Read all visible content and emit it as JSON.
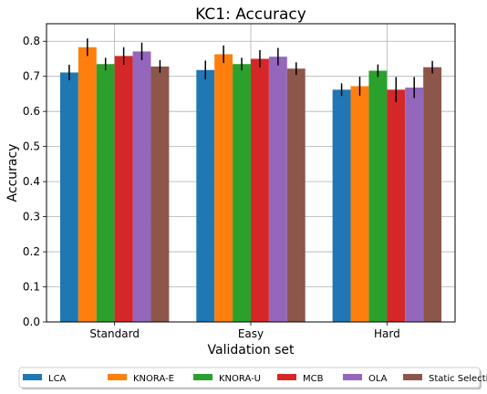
{
  "chart_data": {
    "type": "bar",
    "title": "KC1: Accuracy",
    "xlabel": "Validation set",
    "ylabel": "Accuracy",
    "categories": [
      "Standard",
      "Easy",
      "Hard"
    ],
    "ylim": [
      0,
      0.85
    ],
    "yticks": [
      0.0,
      0.1,
      0.2,
      0.3,
      0.4,
      0.5,
      0.6,
      0.7,
      0.8
    ],
    "grid": true,
    "legend_position": "bottom",
    "error_bars": true,
    "series": [
      {
        "name": "LCA",
        "color": "#1f77b4",
        "values": [
          0.711,
          0.718,
          0.662
        ],
        "errors": [
          0.022,
          0.027,
          0.018
        ]
      },
      {
        "name": "KNORA-E",
        "color": "#ff7f0e",
        "values": [
          0.783,
          0.763,
          0.672
        ],
        "errors": [
          0.025,
          0.025,
          0.027
        ]
      },
      {
        "name": "KNORA-U",
        "color": "#2ca02c",
        "values": [
          0.735,
          0.735,
          0.716
        ],
        "errors": [
          0.018,
          0.018,
          0.018
        ]
      },
      {
        "name": "MCB",
        "color": "#d62728",
        "values": [
          0.758,
          0.75,
          0.662
        ],
        "errors": [
          0.025,
          0.025,
          0.036
        ]
      },
      {
        "name": "OLA",
        "color": "#9467bd",
        "values": [
          0.771,
          0.756,
          0.668
        ],
        "errors": [
          0.025,
          0.025,
          0.03
        ]
      },
      {
        "name": "Static Selection",
        "color": "#8c564b",
        "values": [
          0.728,
          0.722,
          0.726
        ],
        "errors": [
          0.018,
          0.018,
          0.018
        ]
      }
    ]
  }
}
